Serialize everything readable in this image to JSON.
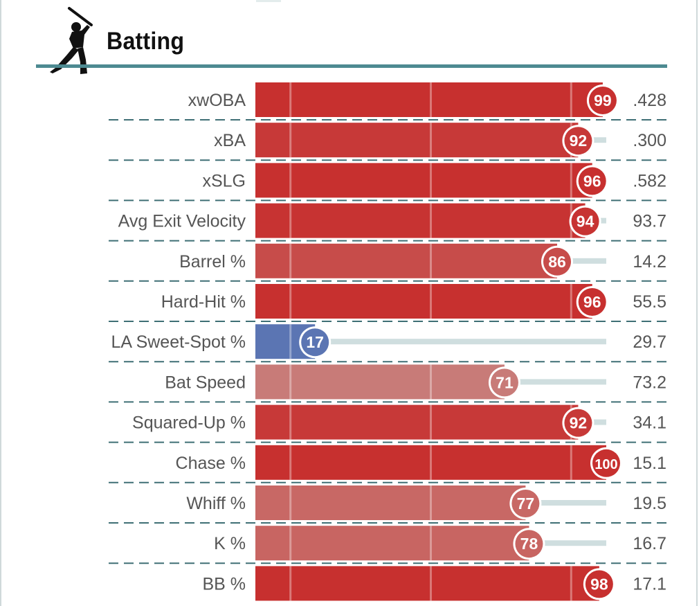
{
  "section": {
    "title": "Batting",
    "icon": "batter-silhouette-icon"
  },
  "chart_data": {
    "type": "bar",
    "orientation": "horizontal",
    "value_type": "percentile",
    "xlim": [
      0,
      100
    ],
    "reference_lines": [
      10,
      50,
      90
    ],
    "grid": false,
    "legend": "none",
    "colors": {
      "high": "#c7302f",
      "low": "#5b75b3",
      "track": "#cfdedf",
      "rule": "#4d8a91",
      "divider": "#3f6f75"
    },
    "categories": [
      "xwOBA",
      "xBA",
      "xSLG",
      "Avg Exit Velocity",
      "Barrel %",
      "Hard-Hit %",
      "LA Sweet-Spot %",
      "Bat Speed",
      "Squared-Up %",
      "Chase %",
      "Whiff %",
      "K %",
      "BB %"
    ],
    "series": [
      {
        "percentiles": [
          99,
          92,
          96,
          94,
          86,
          96,
          17,
          71,
          92,
          100,
          77,
          78,
          98
        ],
        "stat_values": [
          ".428",
          ".300",
          ".582",
          "93.7",
          "14.2",
          "55.5",
          "29.7",
          "73.2",
          "34.1",
          "15.1",
          "19.5",
          "16.7",
          "17.1"
        ]
      }
    ]
  }
}
